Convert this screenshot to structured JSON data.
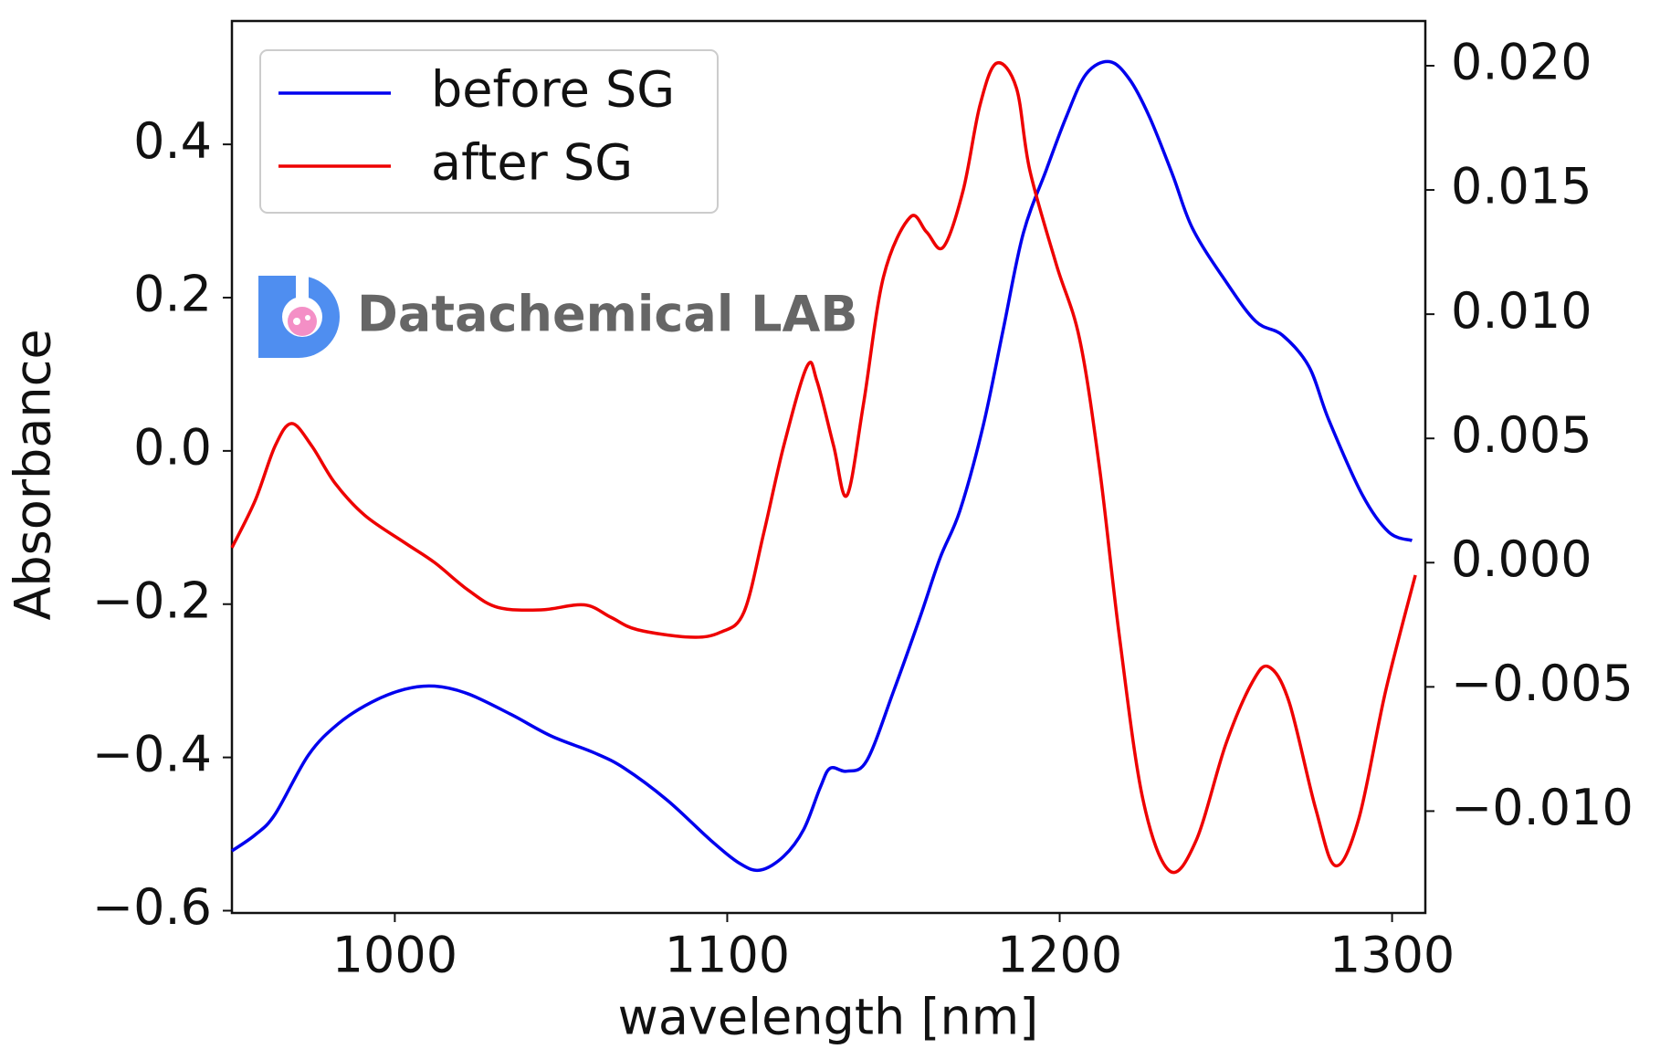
{
  "chart_data": {
    "type": "line",
    "xlabel": "wavelength [nm]",
    "ylabel": "Absorbance",
    "annotation": "Datachemical LAB",
    "legend": "upper left",
    "xlim": [
      951,
      1310
    ],
    "xticks": [
      1000,
      1100,
      1200,
      1300
    ],
    "ylim": [
      -0.603,
      0.561
    ],
    "yticks": [
      {
        "value": -0.6,
        "label": "−0.6"
      },
      {
        "value": -0.4,
        "label": "−0.4"
      },
      {
        "value": -0.2,
        "label": "−0.2"
      },
      {
        "value": 0,
        "label": "0.0"
      },
      0.2,
      0.4
    ],
    "y2lim": [
      -0.0141,
      0.0218
    ],
    "y2ticks": [
      {
        "value": -0.01,
        "label": "−0.010"
      },
      {
        "value": -0.005,
        "label": "−0.005"
      },
      {
        "value": 0,
        "label": "0.000"
      },
      {
        "value": 0.005,
        "label": "0.005"
      },
      {
        "value": 0.01,
        "label": "0.010"
      },
      {
        "value": 0.015,
        "label": "0.015"
      },
      {
        "value": 0.02,
        "label": "0.020"
      }
    ],
    "series": [
      {
        "name": "before SG",
        "color": "#0000ee",
        "axis": "y",
        "x": [
          951,
          958,
          964,
          974,
          983,
          993,
          1003,
          1012,
          1022,
          1035,
          1047,
          1060,
          1069,
          1082,
          1095,
          1104,
          1110,
          1117,
          1123,
          1128,
          1131,
          1136,
          1142,
          1150,
          1158,
          1164,
          1170,
          1177,
          1183,
          1189,
          1196,
          1202,
          1208,
          1215,
          1221,
          1227,
          1234,
          1240,
          1250,
          1259,
          1267,
          1275,
          1281,
          1291,
          1299,
          1306
        ],
        "values": [
          -0.522,
          -0.501,
          -0.474,
          -0.397,
          -0.356,
          -0.328,
          -0.311,
          -0.307,
          -0.317,
          -0.344,
          -0.372,
          -0.394,
          -0.414,
          -0.456,
          -0.508,
          -0.539,
          -0.547,
          -0.529,
          -0.494,
          -0.439,
          -0.414,
          -0.418,
          -0.404,
          -0.314,
          -0.217,
          -0.14,
          -0.078,
          0.033,
          0.158,
          0.283,
          0.367,
          0.436,
          0.492,
          0.508,
          0.485,
          0.436,
          0.36,
          0.29,
          0.221,
          0.169,
          0.151,
          0.11,
          0.04,
          -0.057,
          -0.106,
          -0.117
        ]
      },
      {
        "name": "after SG",
        "color": "#ee0000",
        "axis": "y2",
        "x": [
          951,
          958,
          964,
          969,
          975,
          982,
          991,
          1003,
          1012,
          1022,
          1031,
          1044,
          1057,
          1065,
          1073,
          1089,
          1098,
          1105,
          1111,
          1117,
          1124,
          1127,
          1132,
          1136,
          1141,
          1147,
          1155,
          1160,
          1165,
          1171,
          1176,
          1181,
          1187,
          1191,
          1199,
          1206,
          1212,
          1218,
          1225,
          1233,
          1241,
          1250,
          1258,
          1263,
          1269,
          1277,
          1283,
          1290,
          1298,
          1307
        ],
        "values": [
          0.0006,
          0.0025,
          0.0047,
          0.0056,
          0.0047,
          0.0032,
          0.0019,
          0.0008,
          0.0,
          -0.0011,
          -0.0018,
          -0.0019,
          -0.0017,
          -0.0022,
          -0.0027,
          -0.003,
          -0.0028,
          -0.002,
          0.0012,
          0.0047,
          0.0079,
          0.0073,
          0.0047,
          0.0027,
          0.0064,
          0.0115,
          0.0139,
          0.0133,
          0.0127,
          0.015,
          0.0184,
          0.0201,
          0.0191,
          0.0158,
          0.012,
          0.009,
          0.0038,
          -0.003,
          -0.0095,
          -0.0124,
          -0.0112,
          -0.0073,
          -0.0048,
          -0.0042,
          -0.0056,
          -0.0099,
          -0.0122,
          -0.0103,
          -0.0052,
          -0.0005
        ]
      }
    ]
  }
}
